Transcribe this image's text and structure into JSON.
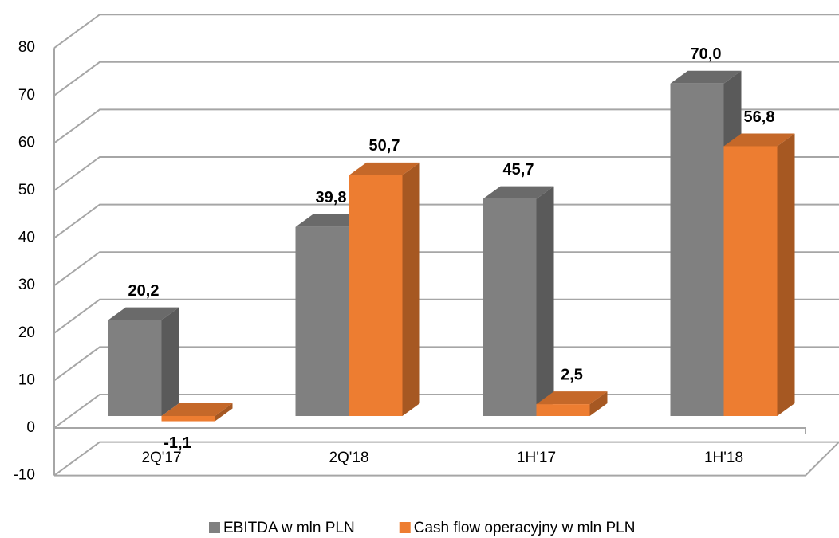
{
  "chart_data": {
    "type": "bar3d",
    "categories": [
      "2Q'17",
      "2Q'18",
      "1H'17",
      "1H'18"
    ],
    "series": [
      {
        "name": "EBITDA w mln PLN",
        "color": "#808080",
        "values": [
          20.2,
          39.8,
          45.7,
          70.0
        ],
        "value_labels": [
          "20,2",
          "39,8",
          "45,7",
          "70,0"
        ]
      },
      {
        "name": "Cash flow operacyjny w mln PLN",
        "color": "#ed7d31",
        "values": [
          -1.1,
          50.7,
          2.5,
          56.8
        ],
        "value_labels": [
          "-1,1",
          "50,7",
          "2,5",
          "56,8"
        ]
      }
    ],
    "ylim": [
      -10,
      80
    ],
    "yticks": [
      -10,
      0,
      10,
      20,
      30,
      40,
      50,
      60,
      70,
      80
    ],
    "grid": true,
    "legend": "bottom"
  }
}
